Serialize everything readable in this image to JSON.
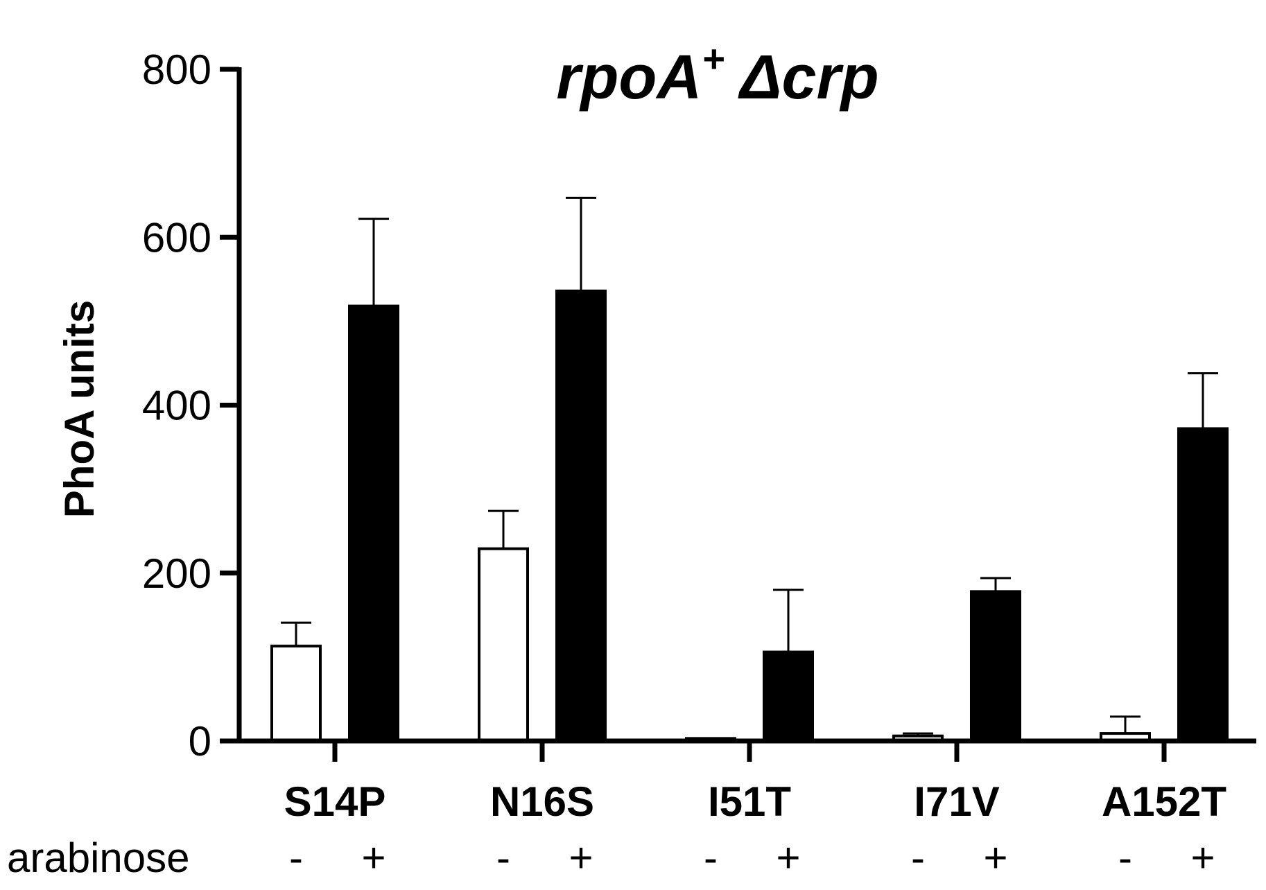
{
  "chart_data": {
    "type": "bar",
    "title_parts": {
      "gene": "rpoA",
      "sup": "+",
      "delta": "Δ",
      "mutant": "crp"
    },
    "ylabel": "PhoA units",
    "ylim": [
      0,
      800
    ],
    "yticks": [
      0,
      200,
      400,
      600,
      800
    ],
    "categories": [
      "S14P",
      "N16S",
      "I51T",
      "I71V",
      "A152T"
    ],
    "condition_label": "arabinose",
    "series": [
      {
        "name": "-",
        "fill": "#ffffff",
        "values": [
          113,
          229,
          3,
          6,
          9
        ],
        "errors": [
          28,
          45,
          0,
          3,
          20
        ]
      },
      {
        "name": "+",
        "fill": "#000000",
        "values": [
          518,
          536,
          106,
          178,
          372
        ],
        "errors": [
          104,
          111,
          74,
          16,
          66
        ]
      }
    ]
  }
}
